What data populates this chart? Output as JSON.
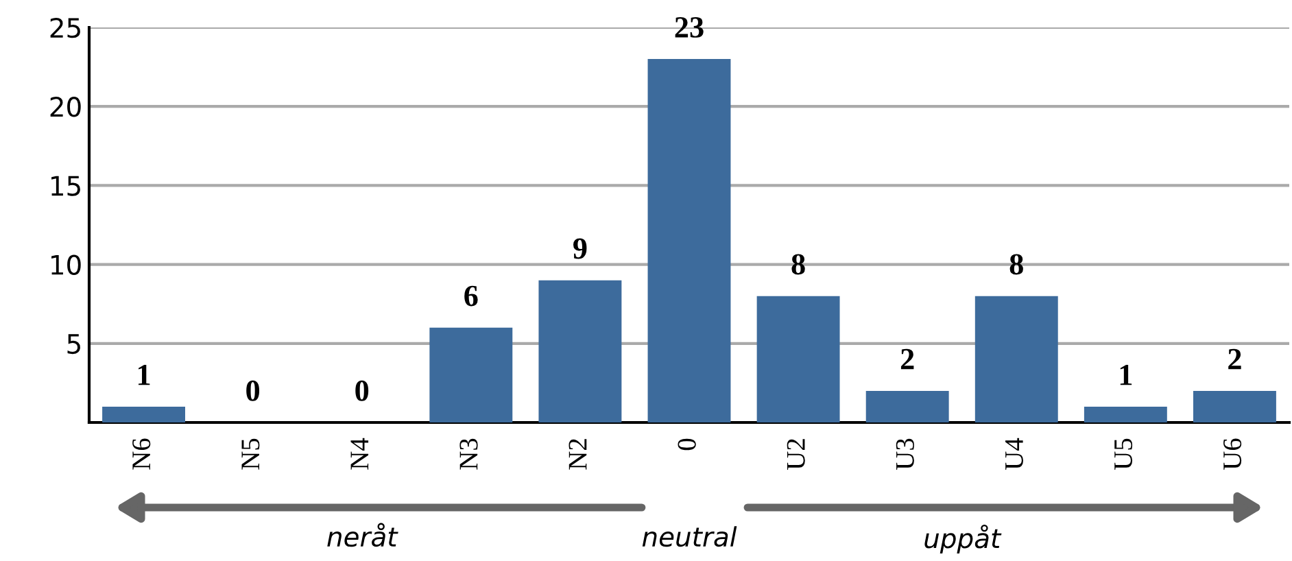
{
  "chart_data": {
    "type": "bar",
    "categories": [
      "N6",
      "N5",
      "N4",
      "N3",
      "N2",
      "0",
      "U2",
      "U3",
      "U4",
      "U5",
      "U6"
    ],
    "values": [
      1,
      0,
      0,
      6,
      9,
      23,
      8,
      2,
      8,
      1,
      2
    ],
    "color": "#3d6b9c",
    "ylim": [
      0,
      25
    ],
    "yticks": [
      {
        "value": 0,
        "label": null
      },
      5,
      10,
      15,
      20,
      25
    ],
    "grid": "y",
    "data_labels": true,
    "annotations": [
      "neråt",
      "neutral",
      "uppåt"
    ]
  }
}
